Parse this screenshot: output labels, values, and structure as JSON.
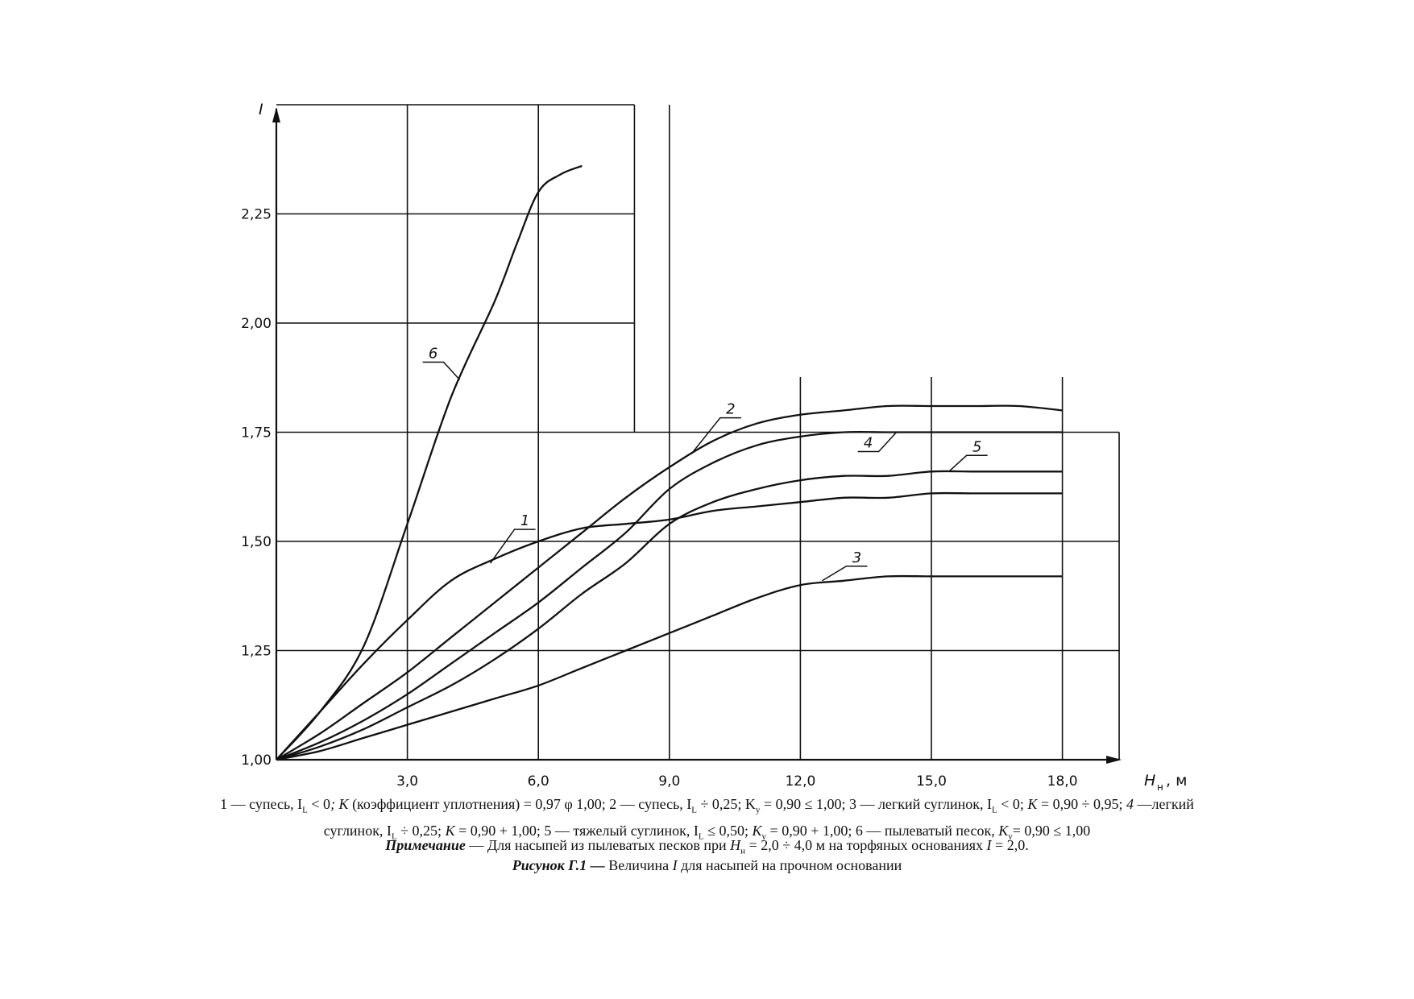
{
  "chart_data": {
    "type": "line",
    "y_axis_label": "I",
    "x_axis_label": {
      "main": "H",
      "sub": "н",
      "unit": ", м"
    },
    "x_ticks": [
      "3,0",
      "6,0",
      "9,0",
      "12,0",
      "15,0",
      "18,0"
    ],
    "y_ticks": [
      "1,00",
      "1,25",
      "1,50",
      "1,75",
      "2,00",
      "2,25"
    ],
    "xlim": [
      0,
      21
    ],
    "ylim": [
      1.0,
      2.5
    ],
    "grid": true,
    "series": [
      {
        "name": "1",
        "points": [
          [
            0,
            1.0
          ],
          [
            1,
            1.11
          ],
          [
            2,
            1.22
          ],
          [
            3,
            1.32
          ],
          [
            4,
            1.41
          ],
          [
            5,
            1.46
          ],
          [
            6,
            1.5
          ],
          [
            7,
            1.53
          ],
          [
            8,
            1.54
          ],
          [
            9,
            1.55
          ],
          [
            10,
            1.57
          ],
          [
            11,
            1.58
          ],
          [
            12,
            1.59
          ],
          [
            13,
            1.6
          ],
          [
            14,
            1.6
          ],
          [
            15,
            1.61
          ],
          [
            16,
            1.61
          ],
          [
            17,
            1.61
          ],
          [
            18,
            1.61
          ]
        ]
      },
      {
        "name": "2",
        "points": [
          [
            0,
            1.0
          ],
          [
            1,
            1.06
          ],
          [
            2,
            1.13
          ],
          [
            3,
            1.2
          ],
          [
            4,
            1.28
          ],
          [
            5,
            1.36
          ],
          [
            6,
            1.44
          ],
          [
            7,
            1.52
          ],
          [
            8,
            1.6
          ],
          [
            9,
            1.67
          ],
          [
            10,
            1.73
          ],
          [
            11,
            1.77
          ],
          [
            12,
            1.79
          ],
          [
            13,
            1.8
          ],
          [
            14,
            1.81
          ],
          [
            15,
            1.81
          ],
          [
            16,
            1.81
          ],
          [
            17,
            1.81
          ],
          [
            18,
            1.8
          ]
        ]
      },
      {
        "name": "3",
        "points": [
          [
            0,
            1.0
          ],
          [
            1,
            1.02
          ],
          [
            2,
            1.05
          ],
          [
            3,
            1.08
          ],
          [
            4,
            1.11
          ],
          [
            5,
            1.14
          ],
          [
            6,
            1.17
          ],
          [
            7,
            1.21
          ],
          [
            8,
            1.25
          ],
          [
            9,
            1.29
          ],
          [
            10,
            1.33
          ],
          [
            11,
            1.37
          ],
          [
            12,
            1.4
          ],
          [
            13,
            1.41
          ],
          [
            14,
            1.42
          ],
          [
            15,
            1.42
          ],
          [
            16,
            1.42
          ],
          [
            17,
            1.42
          ],
          [
            18,
            1.42
          ]
        ]
      },
      {
        "name": "4",
        "points": [
          [
            0,
            1.0
          ],
          [
            1,
            1.04
          ],
          [
            2,
            1.09
          ],
          [
            3,
            1.15
          ],
          [
            4,
            1.22
          ],
          [
            5,
            1.29
          ],
          [
            6,
            1.36
          ],
          [
            7,
            1.44
          ],
          [
            8,
            1.52
          ],
          [
            9,
            1.62
          ],
          [
            10,
            1.68
          ],
          [
            11,
            1.72
          ],
          [
            12,
            1.74
          ],
          [
            13,
            1.75
          ],
          [
            14,
            1.75
          ],
          [
            15,
            1.75
          ],
          [
            16,
            1.75
          ],
          [
            17,
            1.75
          ],
          [
            18,
            1.75
          ]
        ]
      },
      {
        "name": "5",
        "points": [
          [
            0,
            1.0
          ],
          [
            1,
            1.03
          ],
          [
            2,
            1.07
          ],
          [
            3,
            1.12
          ],
          [
            4,
            1.17
          ],
          [
            5,
            1.23
          ],
          [
            6,
            1.3
          ],
          [
            7,
            1.38
          ],
          [
            8,
            1.45
          ],
          [
            9,
            1.54
          ],
          [
            10,
            1.59
          ],
          [
            11,
            1.62
          ],
          [
            12,
            1.64
          ],
          [
            13,
            1.65
          ],
          [
            14,
            1.65
          ],
          [
            15,
            1.66
          ],
          [
            16,
            1.66
          ],
          [
            17,
            1.66
          ],
          [
            18,
            1.66
          ]
        ]
      },
      {
        "name": "6",
        "points": [
          [
            0,
            1.0
          ],
          [
            1,
            1.11
          ],
          [
            2,
            1.26
          ],
          [
            3,
            1.54
          ],
          [
            4,
            1.83
          ],
          [
            5,
            2.05
          ],
          [
            5.5,
            2.18
          ],
          [
            6,
            2.3
          ],
          [
            6.5,
            2.34
          ],
          [
            7,
            2.36
          ]
        ]
      }
    ]
  },
  "legend_text": {
    "part1": "1 — супесь, I",
    "part1_sub": "L",
    "part2": " < 0",
    "part3": "; K",
    "part4": " (коэффициент уплотнения) = 0,97 φ 1,00; 2 — супесь, I",
    "part4_sub": "L",
    "part5": " ÷ 0,25; K",
    "part5_sub": "y",
    "part6": " = 0,90 ≤ 1,00; 3 — легкий суглинок, I",
    "part6_sub": "L",
    "part7": "  < 0; ",
    "part8": "K",
    "part9": " = 0,90 ÷ 0,95; ",
    "part10": "4",
    "part11": " —легкий",
    "line2_a": "суглинок, I",
    "line2_a_sub": "L",
    "line2_b": " ÷ 0,25; ",
    "line2_c": "K",
    "line2_d": " = 0,90 + 1,00; 5 — тяжелый суглинок, I",
    "line2_d_sub": "L",
    "line2_e": " ≤ 0,50; ",
    "line2_f": "K",
    "line2_f_sub": "y",
    "line2_g": " = 0,90 + 1,00; 6 — пылеватый песок, ",
    "line2_h": "K",
    "line2_h_sub": "y",
    "line2_i": "= 0,90 ≤ 1,00"
  },
  "note": {
    "label": "Примечание",
    "text_a": " — Для насыпей из пылеватых песков при ",
    "h": "H",
    "h_sub": "н",
    "text_b": " = 2,0  ÷  4,0 м на торфяных основаниях ",
    "i": "I",
    "text_c": " = 2,0."
  },
  "figure_caption": {
    "label": "Рисунок Г.1 —",
    "text_a": " Величина ",
    "i": "I",
    "text_b": " для насыпей на прочном основании"
  }
}
